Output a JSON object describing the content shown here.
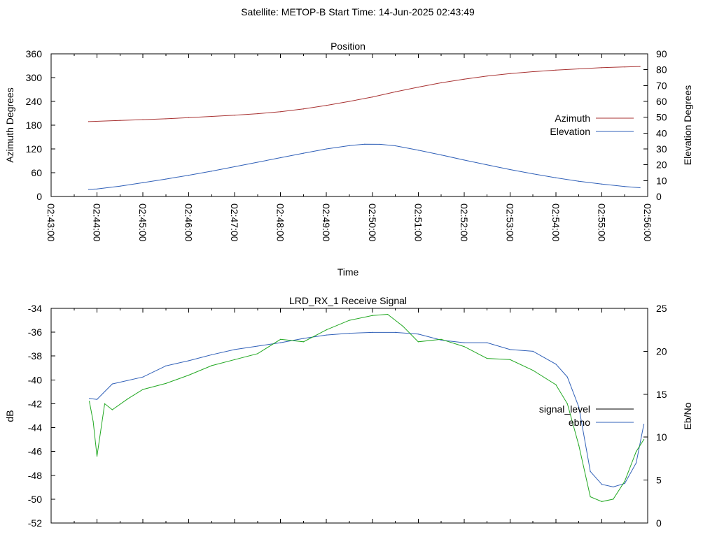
{
  "header": {
    "text": "Satellite: METOP-B    Start Time: 14-Jun-2025 02:43:49"
  },
  "colors": {
    "azimuth": "#a83232",
    "elevation": "#3060b8",
    "signal_level": "#000000",
    "ebno_line": "#3060b8",
    "signal_trace": "#22a822"
  },
  "chart_data": [
    {
      "type": "line",
      "title": "Position",
      "xlabel": "Time",
      "ylabel": "Azimuth Degrees",
      "y2label": "Elevation Degrees",
      "xlim": [
        "02:43:00",
        "02:56:00"
      ],
      "ylim": [
        0,
        360
      ],
      "y2lim": [
        0,
        90
      ],
      "x_ticks": [
        "02:43:00",
        "02:44:00",
        "02:45:00",
        "02:46:00",
        "02:47:00",
        "02:48:00",
        "02:49:00",
        "02:50:00",
        "02:51:00",
        "02:52:00",
        "02:53:00",
        "02:54:00",
        "02:55:00",
        "02:56:00"
      ],
      "y_ticks": [
        "0",
        "60",
        "120",
        "180",
        "240",
        "300",
        "360"
      ],
      "y2_ticks": [
        "0",
        "10",
        "20",
        "30",
        "40",
        "50",
        "60",
        "70",
        "80",
        "90"
      ],
      "legend_position": "right",
      "series": [
        {
          "name": "Azimuth",
          "axis": "y1",
          "color": "#a83232",
          "x": [
            "02:43:49",
            "02:44:30",
            "02:45:00",
            "02:45:30",
            "02:46:00",
            "02:46:30",
            "02:47:00",
            "02:47:30",
            "02:48:00",
            "02:48:30",
            "02:49:00",
            "02:49:30",
            "02:50:00",
            "02:50:30",
            "02:51:00",
            "02:51:30",
            "02:52:00",
            "02:52:30",
            "02:53:00",
            "02:53:30",
            "02:54:00",
            "02:54:30",
            "02:55:00",
            "02:55:30",
            "02:55:50"
          ],
          "values": [
            189,
            192,
            194,
            196,
            199,
            202,
            205,
            209,
            214,
            221,
            230,
            240,
            251,
            264,
            276,
            287,
            296,
            304,
            310,
            315,
            319,
            322,
            325,
            327,
            328
          ]
        },
        {
          "name": "Elevation",
          "axis": "y2",
          "color": "#3060b8",
          "x": [
            "02:43:49",
            "02:44:00",
            "02:44:30",
            "02:45:00",
            "02:45:30",
            "02:46:00",
            "02:46:30",
            "02:47:00",
            "02:47:30",
            "02:48:00",
            "02:48:30",
            "02:49:00",
            "02:49:30",
            "02:49:50",
            "02:50:10",
            "02:50:30",
            "02:51:00",
            "02:51:30",
            "02:52:00",
            "02:52:30",
            "02:53:00",
            "02:53:30",
            "02:54:00",
            "02:54:30",
            "02:55:00",
            "02:55:30",
            "02:55:50"
          ],
          "values": [
            4.5,
            4.7,
            6.5,
            8.7,
            11.0,
            13.4,
            16.0,
            18.8,
            21.6,
            24.5,
            27.3,
            30.0,
            32.1,
            33.0,
            32.9,
            32.0,
            29.2,
            26.2,
            23.0,
            20.0,
            17.0,
            14.3,
            11.8,
            9.6,
            7.8,
            6.3,
            5.5
          ]
        }
      ]
    },
    {
      "type": "line",
      "title": "LRD_RX_1 Receive Signal",
      "xlabel": "",
      "ylabel": "dB",
      "y2label": "Eb/No",
      "ylim": [
        -52,
        -34
      ],
      "y2lim": [
        0,
        25
      ],
      "y_ticks": [
        "-52",
        "-50",
        "-48",
        "-46",
        "-44",
        "-42",
        "-40",
        "-38",
        "-36",
        "-34"
      ],
      "y2_ticks": [
        "0",
        "5",
        "10",
        "15",
        "20",
        "25"
      ],
      "legend_position": "right",
      "series": [
        {
          "name": "signal_level",
          "axis": "y1",
          "color": "#000000",
          "x": [],
          "values": []
        },
        {
          "name": "ebno",
          "axis": "y2",
          "color": "#3060b8",
          "x": [
            "02:43:50",
            "02:44:00",
            "02:44:20",
            "02:45:00",
            "02:45:30",
            "02:46:00",
            "02:46:30",
            "02:47:00",
            "02:47:30",
            "02:48:00",
            "02:48:30",
            "02:49:00",
            "02:49:30",
            "02:50:00",
            "02:50:30",
            "02:51:00",
            "02:51:30",
            "02:52:00",
            "02:52:30",
            "02:53:00",
            "02:53:30",
            "02:54:00",
            "02:54:15",
            "02:54:30",
            "02:54:45",
            "02:55:00",
            "02:55:15",
            "02:55:30",
            "02:55:45",
            "02:55:55"
          ],
          "values": [
            14.5,
            14.4,
            16.2,
            17.0,
            18.3,
            18.9,
            19.6,
            20.2,
            20.6,
            21.0,
            21.5,
            21.9,
            22.1,
            22.2,
            22.2,
            22.0,
            21.3,
            21.0,
            21.0,
            20.2,
            20.0,
            18.5,
            17.0,
            13.5,
            6.0,
            4.5,
            4.2,
            4.6,
            7.0,
            11.5
          ]
        },
        {
          "name": "",
          "axis": "y1",
          "color": "#22a822",
          "x": [
            "02:43:50",
            "02:43:55",
            "02:44:00",
            "02:44:10",
            "02:44:20",
            "02:44:40",
            "02:45:00",
            "02:45:30",
            "02:46:00",
            "02:46:30",
            "02:47:00",
            "02:47:30",
            "02:48:00",
            "02:48:30",
            "02:49:00",
            "02:49:30",
            "02:50:00",
            "02:50:20",
            "02:50:40",
            "02:51:00",
            "02:51:30",
            "02:52:00",
            "02:52:30",
            "02:53:00",
            "02:53:30",
            "02:54:00",
            "02:54:15",
            "02:54:30",
            "02:54:45",
            "02:55:00",
            "02:55:15",
            "02:55:30",
            "02:55:45",
            "02:55:55"
          ],
          "values": [
            -41.8,
            -43.5,
            -46.4,
            -42.0,
            -42.5,
            -41.6,
            -40.8,
            -40.3,
            -39.6,
            -38.8,
            -38.3,
            -37.8,
            -36.6,
            -36.8,
            -35.8,
            -35.0,
            -34.6,
            -34.5,
            -35.5,
            -36.8,
            -36.6,
            -37.2,
            -38.2,
            -38.3,
            -39.2,
            -40.4,
            -42.0,
            -45.5,
            -49.8,
            -50.2,
            -50.0,
            -48.5,
            -46.0,
            -45.0
          ]
        }
      ]
    }
  ]
}
